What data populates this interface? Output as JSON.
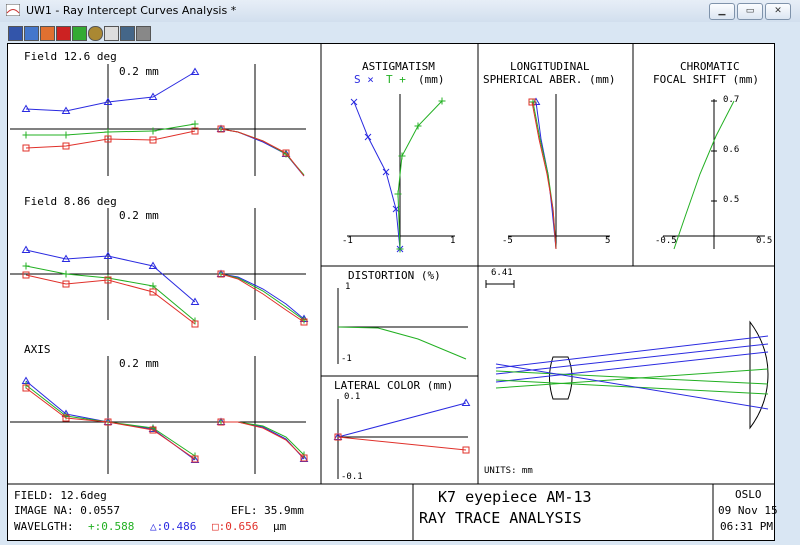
{
  "window": {
    "title": "UW1 - Ray Intercept Curves Analysis *",
    "buttons": [
      "minimize-button",
      "maximize-button",
      "close-button"
    ]
  },
  "toolbar": {
    "icons": [
      "table-icon",
      "chart-icon",
      "color-icon",
      "flag-icon",
      "grid-icon",
      "target-icon",
      "spot-icon",
      "grid2-icon",
      "dots-icon"
    ]
  },
  "ray_intercept": {
    "fields": [
      {
        "label": "Field 12.6 deg",
        "scale": "0.2 mm"
      },
      {
        "label": "Field 8.86 deg",
        "scale": "0.2 mm"
      },
      {
        "label": "AXIS",
        "scale": "0.2 mm"
      }
    ]
  },
  "astigmatism": {
    "title": "ASTIGMATISM",
    "legend_s": "S ×",
    "legend_t": "T +",
    "unit": "(mm)",
    "ticks": [
      "-1",
      "1"
    ]
  },
  "longitudinal": {
    "title_line1": "LONGITUDINAL",
    "title_line2": "SPHERICAL ABER. (mm)",
    "ticks": [
      "-5",
      "5"
    ]
  },
  "chromatic": {
    "title_line1": "CHROMATIC",
    "title_line2": "FOCAL SHIFT (mm)",
    "yticks": [
      "0.7",
      "0.6",
      "0.5"
    ],
    "xticks": [
      "-0.5",
      "0.5"
    ]
  },
  "distortion": {
    "title": "DISTORTION (%)",
    "ticks": [
      "1",
      "-1"
    ]
  },
  "lateral_color": {
    "title": "LATERAL COLOR (mm)",
    "ticks": [
      "0.1",
      "-0.1"
    ]
  },
  "layout_plot": {
    "scale": "6.41",
    "units": "UNITS: mm"
  },
  "footer": {
    "field": "FIELD: 12.6deg",
    "image_na": "IMAGE NA: 0.0557",
    "efl": "EFL: 35.9mm",
    "wavelength_label": "WAVELGTH:",
    "wl1": "+:0.588",
    "wl2": "△:0.486",
    "wl3": "□:0.656",
    "wl_unit": "µm",
    "title_line1": "K7 eyepiece AM-13",
    "title_line2": "RAY TRACE ANALYSIS",
    "program": "OSLO",
    "date": "09 Nov 15",
    "time": "06:31 PM"
  },
  "colors": {
    "red": "#e0302a",
    "green": "#22b022",
    "blue": "#2a2ae0"
  }
}
